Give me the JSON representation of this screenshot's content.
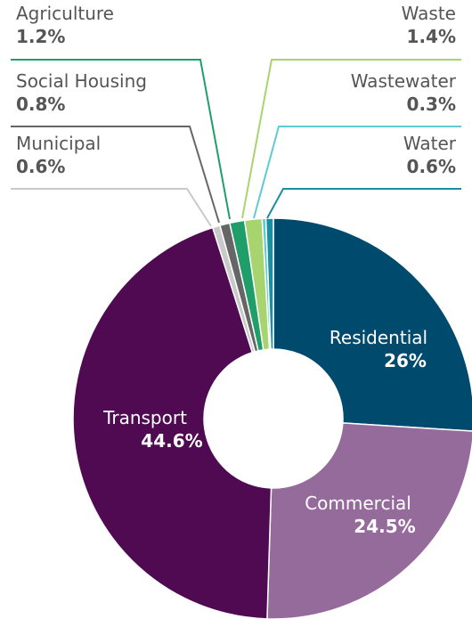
{
  "chart_data": {
    "type": "donut",
    "categories": [
      "Residential",
      "Commercial",
      "Transport",
      "Municipal",
      "Social Housing",
      "Agriculture",
      "Waste",
      "Wastewater",
      "Water"
    ],
    "values": [
      26,
      24.5,
      44.6,
      0.6,
      0.8,
      1.2,
      1.4,
      0.3,
      0.6
    ],
    "value_labels": [
      "26%",
      "24.5%",
      "44.6%",
      "0.6%",
      "0.8%",
      "1.2%",
      "1.4%",
      "0.3%",
      "0.6%"
    ],
    "colors": [
      "#004a6e",
      "#956b9b",
      "#4f0a52",
      "#c9c9c9",
      "#666666",
      "#1f9e6a",
      "#a8d46f",
      "#5ecbd1",
      "#1a8fa0"
    ]
  }
}
